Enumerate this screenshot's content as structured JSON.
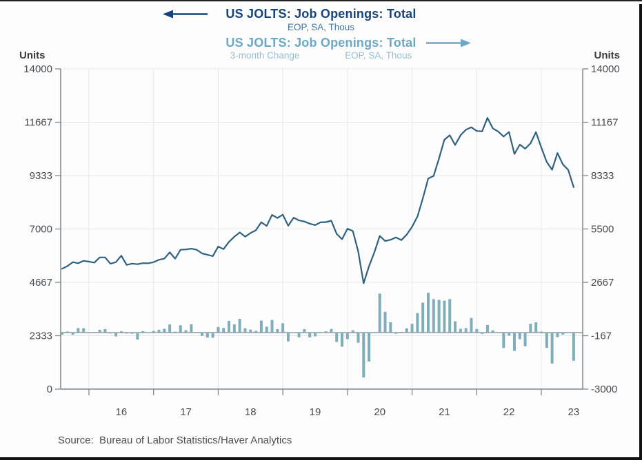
{
  "titles": {
    "primary": {
      "label": "US JOLTS: Job Openings: Total",
      "subtitle": "EOP, SA, Thous",
      "arrow": "left"
    },
    "secondary": {
      "label": "US JOLTS: Job Openings: Total",
      "subtitle_left": "3-month Change",
      "subtitle_right": "EOP, SA, Thous",
      "arrow": "right"
    }
  },
  "axes": {
    "left_units_label": "Units",
    "right_units_label": "Units",
    "left_tick_labels": [
      "14000",
      "11667",
      "9333",
      "7000",
      "4667",
      "2333",
      "0"
    ],
    "right_tick_labels": [
      "14000",
      "11167",
      "8333",
      "5500",
      "2667",
      "-167",
      "-3000"
    ],
    "x_labels": [
      "16",
      "17",
      "18",
      "19",
      "20",
      "21",
      "22",
      "23"
    ]
  },
  "source": "Source:  Bureau of Labor Statistics/Haver Analytics",
  "colors": {
    "title_primary": "#16437a",
    "subtitle_primary": "#42779f",
    "title_secondary": "#6ba8c6",
    "subtitle_secondary": "#96bfd2",
    "line": "#2e617f",
    "bar": "#7fadbc",
    "axis": "#7e888e",
    "grid": "#e3e7e9",
    "zero_line": "#90999f",
    "tick_text": "#474b4f",
    "source_text": "#4c4f52"
  },
  "chart_data": {
    "type": "line+bar",
    "title": "US JOLTS: Job Openings: Total",
    "frequency": "monthly",
    "x_start": "2015-08",
    "x_end": "2023-07",
    "x_axis": {
      "year_tick_years": [
        2016,
        2017,
        2018,
        2019,
        2020,
        2021,
        2022,
        2023
      ],
      "labels": [
        "16",
        "17",
        "18",
        "19",
        "20",
        "21",
        "22",
        "23"
      ],
      "grid": true
    },
    "left_axis": {
      "label": "Units",
      "min": 0,
      "max": 14000,
      "ticks": [
        0,
        2333,
        4667,
        7000,
        9333,
        11667,
        14000
      ]
    },
    "right_axis": {
      "label": "Units",
      "min": -3000,
      "max": 14000,
      "ticks": [
        -3000,
        -167,
        2667,
        5500,
        8333,
        11167,
        14000
      ]
    },
    "series": [
      {
        "name": "US JOLTS: Job Openings: Total (EOP, SA, Thous)",
        "type": "line",
        "axis": "left",
        "values": [
          5261,
          5377,
          5550,
          5500,
          5607,
          5573,
          5527,
          5757,
          5756,
          5480,
          5550,
          5831,
          5428,
          5486,
          5458,
          5505,
          5501,
          5547,
          5655,
          5702,
          5979,
          5703,
          6090,
          6107,
          6140,
          6090,
          5930,
          5874,
          5812,
          6228,
          6120,
          6433,
          6662,
          6850,
          6662,
          6822,
          6943,
          7293,
          7131,
          7614,
          7479,
          7625,
          7142,
          7493,
          7372,
          7326,
          7233,
          7170,
          7288,
          7301,
          7361,
          6787,
          6552,
          7012,
          6907,
          6011,
          4626,
          5371,
          5980,
          6697,
          6472,
          6526,
          6632,
          6512,
          6752,
          7099,
          7546,
          8341,
          9208,
          9319,
          10079,
          10900,
          11098,
          10672,
          11097,
          11337,
          11448,
          11283,
          11266,
          11855,
          11400,
          11257,
          11040,
          11239,
          10280,
          10687,
          10512,
          10746,
          11234,
          10563,
          9931,
          9590,
          10320,
          9824,
          9582,
          8827
        ]
      },
      {
        "name": "US JOLTS: Job Openings: Total, 3-month Change (EOP, SA, Thous)",
        "type": "bar",
        "axis": "right",
        "values": [
          -115,
          54,
          -118,
          239,
          230,
          23,
          27,
          150,
          183,
          -47,
          -207,
          75,
          -52,
          -64,
          -373,
          77,
          15,
          89,
          150,
          201,
          432,
          48,
          388,
          128,
          437,
          0,
          -177,
          -266,
          -278,
          298,
          246,
          621,
          434,
          730,
          229,
          160,
          93,
          631,
          309,
          671,
          186,
          494,
          -472,
          14,
          -253,
          184,
          -260,
          -202,
          -38,
          68,
          191,
          -501,
          -749,
          -349,
          120,
          -541,
          -2386,
          -1536,
          -31,
          2071,
          1101,
          546,
          -65,
          40,
          226,
          467,
          1034,
          1589,
          2109,
          1773,
          1738,
          1692,
          1779,
          593,
          197,
          239,
          776,
          186,
          -71,
          407,
          117,
          -9,
          -815,
          -161,
          -977,
          -353,
          -727,
          466,
          547,
          51,
          -815,
          -1644,
          -243,
          -107,
          -8,
          -1493
        ]
      }
    ]
  }
}
